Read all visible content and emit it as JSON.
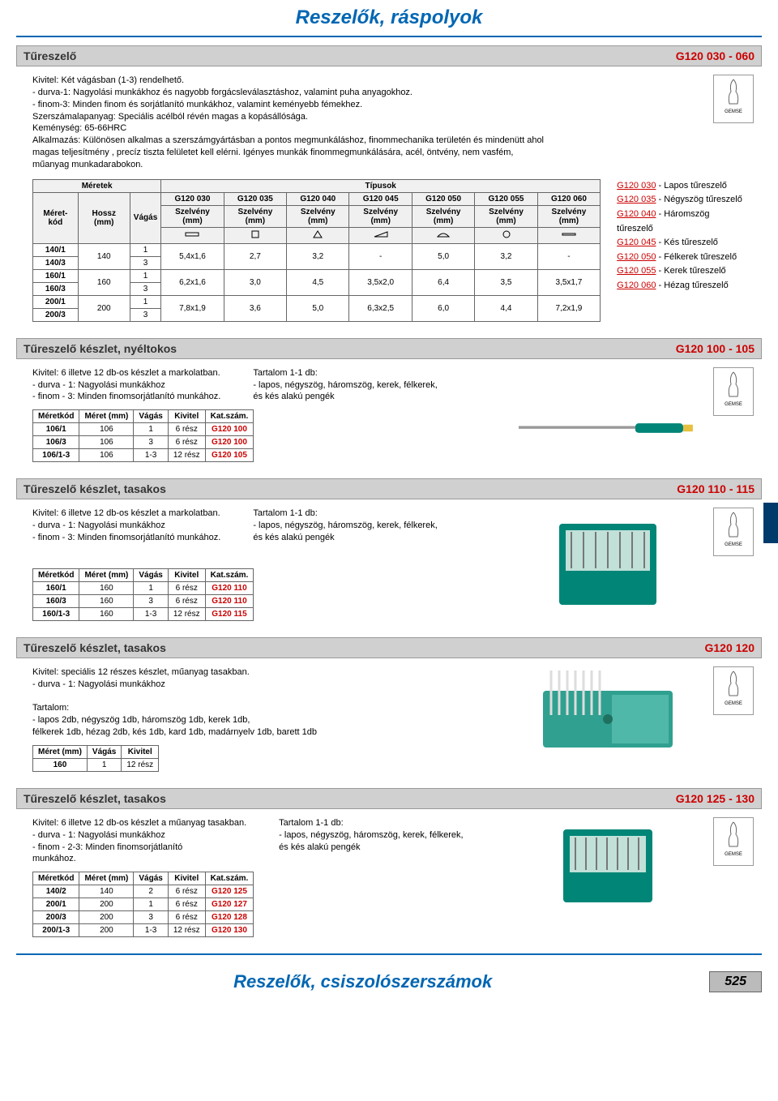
{
  "page": {
    "header": "Reszelők, ráspolyok",
    "footer": "Reszelők, csiszolószerszámok",
    "page_number": "525"
  },
  "section1": {
    "title": "Tűreszelő",
    "code": "G120 030 - 060",
    "desc": "Kivitel: Két vágásban (1-3) rendelhető.\n- durva-1: Nagyolási munkákhoz és nagyobb forgácsleválasztáshoz, valamint puha anyagokhoz.\n- finom-3: Minden finom és sorjátlanító munkákhoz, valamint keményebb fémekhez.\nSzerszámalapanyag: Speciális acélból révén magas a kopásállósága.\nKeménység: 65-66HRC\nAlkalmazás: Különösen alkalmas a szerszámgyártásban a pontos megmunkáláshoz, finommechanika területén és mindenütt ahol magas teljesítmény , precíz tiszta felületet kell elérni. Igényes munkák finommegmunkálására, acél, öntvény, nem vasfém, műanyag munkadarabokon.",
    "table": {
      "h_meret": "Méretek",
      "h_tipus": "Típusok",
      "h_meretkod": "Méret-kód",
      "h_hossz": "Hossz (mm)",
      "h_vagas": "Vágás",
      "h_szelveny": "Szelvény (mm)",
      "codes": [
        "G120 030",
        "G120 035",
        "G120 040",
        "G120 045",
        "G120 050",
        "G120 055",
        "G120 060"
      ],
      "rows": [
        {
          "kod1": "140/1",
          "kod2": "140/3",
          "hossz": "140",
          "v1": "1",
          "v2": "3",
          "c": [
            "5,4x1,6",
            "2,7",
            "3,2",
            "-",
            "5,0",
            "3,2",
            "-"
          ]
        },
        {
          "kod1": "160/1",
          "kod2": "160/3",
          "hossz": "160",
          "v1": "1",
          "v2": "3",
          "c": [
            "6,2x1,6",
            "3,0",
            "4,5",
            "3,5x2,0",
            "6,4",
            "3,5",
            "3,5x1,7"
          ]
        },
        {
          "kod1": "200/1",
          "kod2": "200/3",
          "hossz": "200",
          "v1": "1",
          "v2": "3",
          "c": [
            "7,8x1,9",
            "3,6",
            "5,0",
            "6,3x2,5",
            "6,0",
            "4,4",
            "7,2x1,9"
          ]
        }
      ]
    },
    "legend": [
      {
        "code": "G120 030",
        "text": " - Lapos tűreszelő"
      },
      {
        "code": "G120 035",
        "text": " - Négyszög tűreszelő"
      },
      {
        "code": "G120 040",
        "text": " - Háromszög tűreszelő"
      },
      {
        "code": "G120 045",
        "text": " - Kés tűreszelő"
      },
      {
        "code": "G120 050",
        "text": " - Félkerek tűreszelő"
      },
      {
        "code": "G120 055",
        "text": " - Kerek tűreszelő"
      },
      {
        "code": "G120 060",
        "text": " - Hézag tűreszelő"
      }
    ]
  },
  "section2": {
    "title": "Tűreszelő készlet, nyéltokos",
    "code": "G120 100 - 105",
    "desc_l": "Kivitel: 6 illetve 12 db-os készlet a markolatban.\n- durva - 1: Nagyolási munkákhoz\n- finom - 3: Minden finomsorjátlanító munkához.",
    "desc_r": "Tartalom 1-1 db:\n- lapos, négyszög, háromszög, kerek, félkerek,\n  és kés alakú pengék",
    "cols": [
      "Méretkód",
      "Méret (mm)",
      "Vágás",
      "Kivitel",
      "Kat.szám."
    ],
    "rows": [
      [
        "106/1",
        "106",
        "1",
        "6 rész",
        "G120 100"
      ],
      [
        "106/3",
        "106",
        "3",
        "6 rész",
        "G120 100"
      ],
      [
        "106/1-3",
        "106",
        "1-3",
        "12 rész",
        "G120 105"
      ]
    ]
  },
  "section3": {
    "title": "Tűreszelő készlet, tasakos",
    "code": "G120 110 - 115",
    "desc_l": "Kivitel: 6 illetve 12 db-os készlet a markolatban.\n- durva - 1: Nagyolási munkákhoz\n- finom - 3: Minden finomsorjátlanító munkához.",
    "desc_r": "Tartalom 1-1 db:\n- lapos, négyszög, háromszög, kerek, félkerek,\n  és kés alakú pengék",
    "cols": [
      "Méretkód",
      "Méret (mm)",
      "Vágás",
      "Kivitel",
      "Kat.szám."
    ],
    "rows": [
      [
        "160/1",
        "160",
        "1",
        "6 rész",
        "G120 110"
      ],
      [
        "160/3",
        "160",
        "3",
        "6 rész",
        "G120 110"
      ],
      [
        "160/1-3",
        "160",
        "1-3",
        "12 rész",
        "G120 115"
      ]
    ]
  },
  "section4": {
    "title": "Tűreszelő készlet, tasakos",
    "code": "G120 120",
    "desc": "Kivitel: speciális 12 részes készlet, műanyag tasakban.\n- durva - 1: Nagyolási munkákhoz\n\nTartalom:\n- lapos 2db, négyszög 1db, háromszög 1db, kerek 1db,\n  félkerek 1db, hézag 2db, kés 1db, kard 1db, madárnyelv 1db, barett 1db",
    "cols": [
      "Méret (mm)",
      "Vágás",
      "Kivitel"
    ],
    "rows": [
      [
        "160",
        "1",
        "12 rész"
      ]
    ]
  },
  "section5": {
    "title": "Tűreszelő készlet, tasakos",
    "code": "G120 125 - 130",
    "desc_l": "Kivitel: 6 illetve 12 db-os készlet a műanyag tasakban.\n- durva - 1: Nagyolási munkákhoz\n- finom - 2-3: Minden finomsorjátlanító\n                munkához.",
    "desc_r": "Tartalom 1-1 db:\n- lapos, négyszög, háromszög, kerek, félkerek,\n  és kés alakú pengék",
    "cols": [
      "Méretkód",
      "Méret (mm)",
      "Vágás",
      "Kivitel",
      "Kat.szám."
    ],
    "rows": [
      [
        "140/2",
        "140",
        "2",
        "6 rész",
        "G120 125"
      ],
      [
        "200/1",
        "200",
        "1",
        "6 rész",
        "G120 127"
      ],
      [
        "200/3",
        "200",
        "3",
        "6 rész",
        "G120 128"
      ],
      [
        "200/1-3",
        "200",
        "1-3",
        "12 rész",
        "G120 130"
      ]
    ]
  },
  "colors": {
    "blue": "#0066b3",
    "red": "#c00",
    "gray_bar": "#d0d0d0",
    "teal": "#008577"
  }
}
